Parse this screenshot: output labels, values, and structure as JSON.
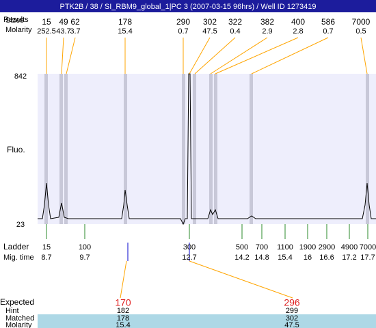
{
  "header": {
    "title": "PTK2B / 38 / SI_RBM9_global_1|PC 3 (2007-03-15 96hrs) / Well ID 1273419"
  },
  "results": {
    "labels": [
      "Results",
      "Sizes",
      "Molarity"
    ],
    "sizes": [
      15,
      49,
      62,
      178,
      290,
      302,
      322,
      382,
      400,
      586,
      7000
    ],
    "molarity": [
      252.5,
      43.7,
      3.7,
      15.4,
      0.7,
      47.5,
      0.4,
      2.9,
      2.8,
      0.7,
      0.5
    ]
  },
  "y_axis": {
    "label": "Fluo.",
    "max": 842,
    "min": 23
  },
  "ladder": {
    "label": "Ladder",
    "time_label": "Mig. time",
    "sizes": [
      15,
      100,
      300,
      500,
      700,
      1100,
      1900,
      2900,
      4900,
      7000
    ],
    "times": [
      8.7,
      9.7,
      12.7,
      14.2,
      14.8,
      15.4,
      16,
      16.6,
      17.2,
      17.7
    ]
  },
  "expected": {
    "labels": [
      "Expected",
      "Hint",
      "Matched",
      "Molarity"
    ],
    "expected": [
      170,
      296
    ],
    "hint": [
      182,
      299
    ],
    "matched": [
      178,
      302
    ],
    "molarity": [
      15.4,
      47.5
    ]
  }
}
